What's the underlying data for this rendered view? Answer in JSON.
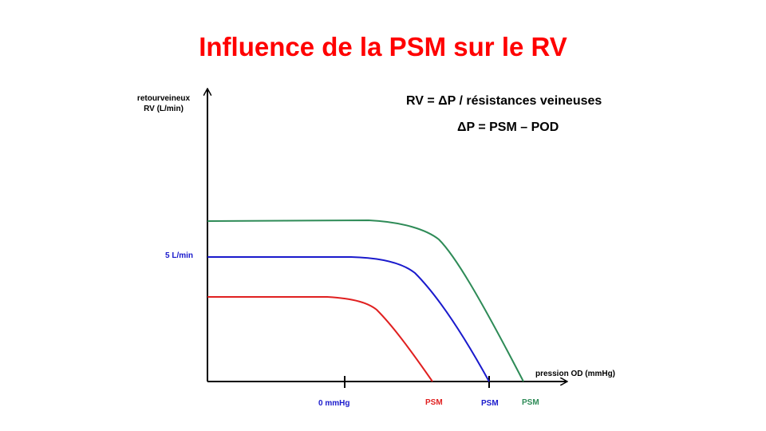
{
  "slide": {
    "title": "Influence de la PSM sur le RV",
    "equation_1": "RV = ΔP / résistances veineuses",
    "equation_2": "ΔP = PSM – POD"
  },
  "axes": {
    "y_label_line1": "retourveineux",
    "y_label_line2": "RV (L/min)",
    "y_tick_label": "5 L/min",
    "x_label": "pression OD (mmHg)",
    "x_tick_label": "0 mmHg"
  },
  "curves": [
    {
      "color": "#e02020",
      "end_label": "PSM"
    },
    {
      "color": "#1a1acc",
      "end_label": "PSM"
    },
    {
      "color": "#2e8b57",
      "end_label": "PSM"
    }
  ],
  "colors": {
    "title": "#ff0000",
    "axis": "#000000"
  }
}
